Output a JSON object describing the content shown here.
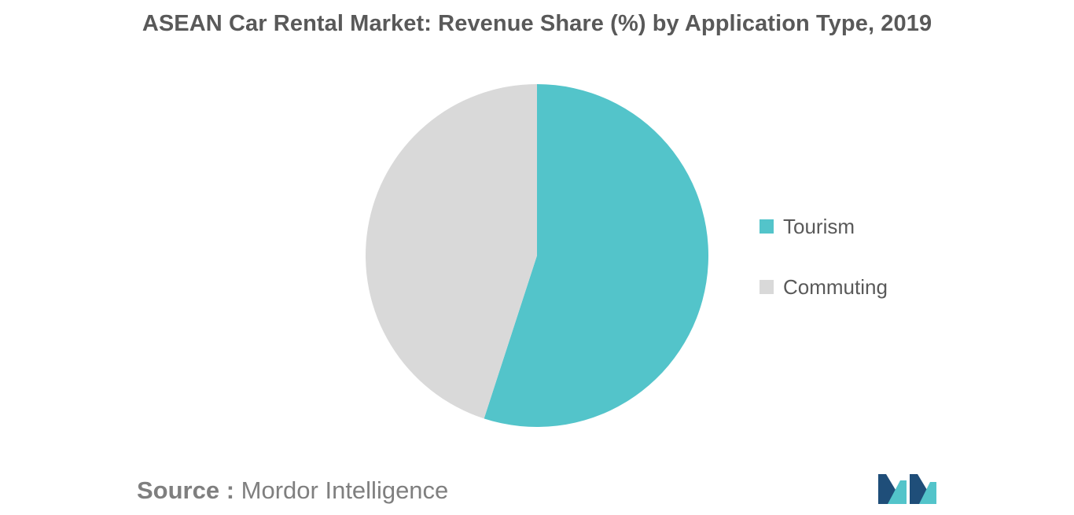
{
  "chart_data": {
    "type": "pie",
    "title": "ASEAN Car Rental Market: Revenue Share (%) by Application Type, 2019",
    "categories": [
      "Tourism",
      "Commuting"
    ],
    "values": [
      55.0,
      45.0
    ],
    "colors": [
      "#53c4ca",
      "#d9d9d9"
    ],
    "start_angle_deg": 0,
    "direction": "clockwise",
    "legend_position": "right"
  },
  "source": {
    "label": "Source :",
    "value": "Mordor Intelligence"
  },
  "logo": {
    "icon": "mordor-intelligence-logo-icon",
    "colors": [
      "#1f4e79",
      "#53c4ca"
    ]
  }
}
